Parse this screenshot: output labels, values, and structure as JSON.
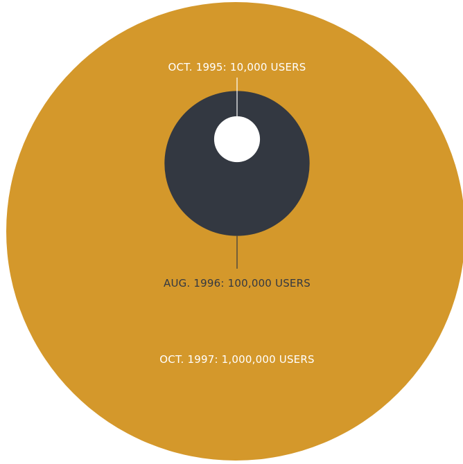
{
  "chart_data": {
    "type": "bubble",
    "title": "",
    "series": [
      {
        "label": "OCT. 1997: 1,000,000 USERS",
        "date": "OCT. 1997",
        "users": 1000000,
        "color": "#D4982B",
        "label_color": "#FFFFFF"
      },
      {
        "label": "AUG. 1996: 100,000 USERS",
        "date": "AUG. 1996",
        "users": 100000,
        "color": "#333841",
        "label_color": "#333841"
      },
      {
        "label": "OCT. 1995: 10,000 USERS",
        "date": "OCT. 1995",
        "users": 10000,
        "color": "#FFFFFF",
        "label_color": "#FFFFFF"
      }
    ]
  }
}
